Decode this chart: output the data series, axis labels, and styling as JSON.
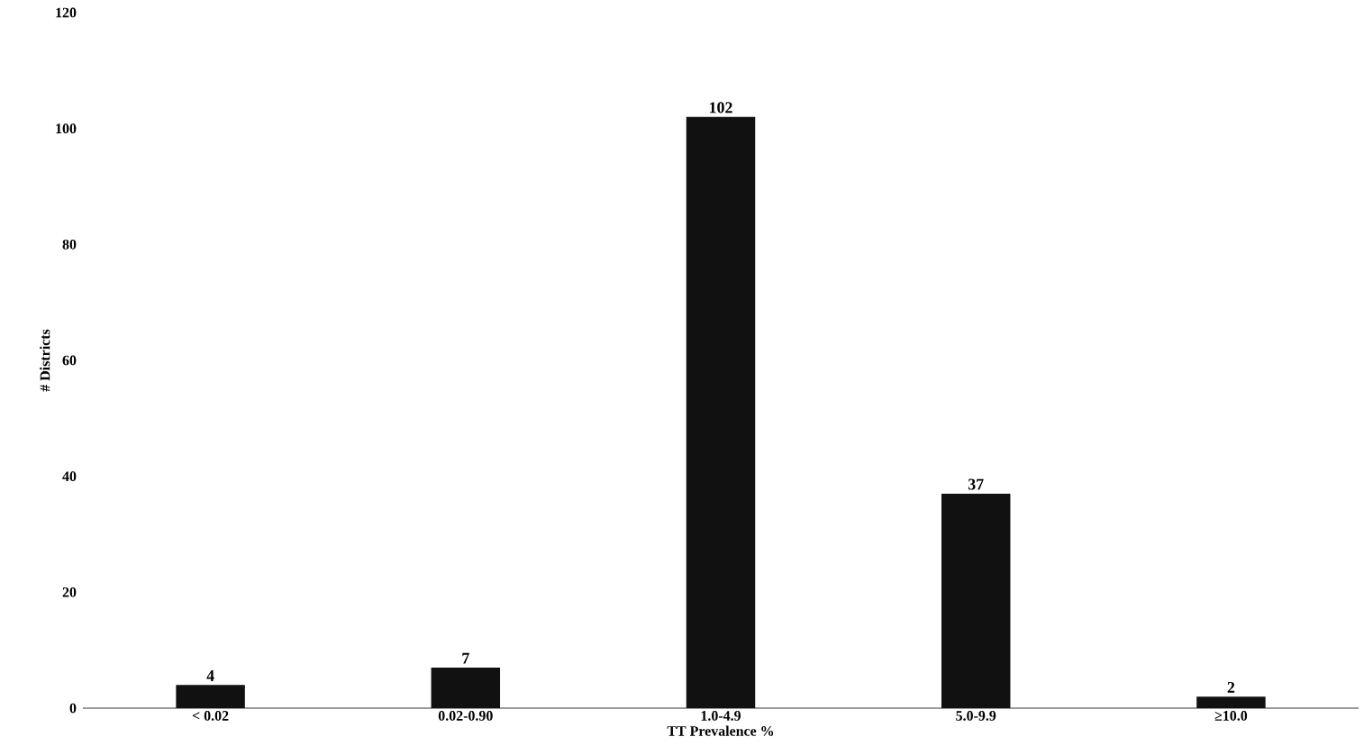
{
  "chart_data": {
    "type": "bar",
    "xlabel": "TT Prevalence %",
    "ylabel": "# Districts",
    "categories": [
      "< 0.02",
      "0.02-0.90",
      "1.0-4.9",
      "5.0-9.9",
      "≥10.0"
    ],
    "values": [
      4,
      7,
      102,
      37,
      2
    ],
    "color": "#111111",
    "ylim": [
      0,
      120
    ],
    "yticks": [
      0,
      20,
      40,
      60,
      80,
      100,
      120
    ],
    "data_labels": true
  }
}
